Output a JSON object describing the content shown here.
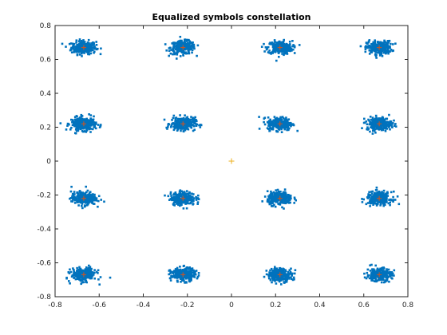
{
  "chart_data": {
    "type": "scatter",
    "title": "Equalized symbols constellation",
    "xlabel": "",
    "ylabel": "",
    "xlim": [
      -0.8,
      0.8
    ],
    "ylim": [
      -0.8,
      0.8
    ],
    "xticks": [
      "-0.8",
      "-0.6",
      "-0.4",
      "-0.2",
      "0",
      "0.2",
      "0.4",
      "0.6",
      "0.8"
    ],
    "yticks": [
      "0.8",
      "0.6",
      "0.4",
      "0.2",
      "0",
      "-0.2",
      "-0.4",
      "-0.6",
      "-0.8"
    ],
    "grid": false,
    "legend": "none",
    "colors": {
      "symbols": "#0072bd",
      "reference": "#d95319",
      "center_marker": "#edb120"
    },
    "series": [
      {
        "role": "equalized symbols (clusters)",
        "marker": "square",
        "spread": 0.035,
        "points": [
          {
            "x": -0.67,
            "y": 0.67
          },
          {
            "x": -0.22,
            "y": 0.67
          },
          {
            "x": 0.22,
            "y": 0.67
          },
          {
            "x": 0.67,
            "y": 0.67
          },
          {
            "x": -0.67,
            "y": 0.22
          },
          {
            "x": -0.22,
            "y": 0.22
          },
          {
            "x": 0.22,
            "y": 0.22
          },
          {
            "x": 0.67,
            "y": 0.22
          },
          {
            "x": -0.67,
            "y": -0.22
          },
          {
            "x": -0.22,
            "y": -0.22
          },
          {
            "x": 0.22,
            "y": -0.22
          },
          {
            "x": 0.67,
            "y": -0.22
          },
          {
            "x": -0.67,
            "y": -0.67
          },
          {
            "x": -0.22,
            "y": -0.67
          },
          {
            "x": 0.22,
            "y": -0.67
          },
          {
            "x": 0.67,
            "y": -0.67
          }
        ]
      },
      {
        "role": "reference constellation",
        "marker": "plus",
        "points": [
          {
            "x": -0.67,
            "y": 0.67
          },
          {
            "x": -0.22,
            "y": 0.67
          },
          {
            "x": 0.22,
            "y": 0.67
          },
          {
            "x": 0.67,
            "y": 0.67
          },
          {
            "x": -0.67,
            "y": 0.22
          },
          {
            "x": -0.22,
            "y": 0.22
          },
          {
            "x": 0.22,
            "y": 0.22
          },
          {
            "x": 0.67,
            "y": 0.22
          },
          {
            "x": -0.67,
            "y": -0.22
          },
          {
            "x": -0.22,
            "y": -0.22
          },
          {
            "x": 0.22,
            "y": -0.22
          },
          {
            "x": 0.67,
            "y": -0.22
          },
          {
            "x": -0.67,
            "y": -0.67
          },
          {
            "x": -0.22,
            "y": -0.67
          },
          {
            "x": 0.22,
            "y": -0.67
          },
          {
            "x": 0.67,
            "y": -0.67
          }
        ]
      },
      {
        "role": "origin marker",
        "marker": "plus",
        "points": [
          {
            "x": 0,
            "y": 0
          }
        ]
      }
    ]
  }
}
